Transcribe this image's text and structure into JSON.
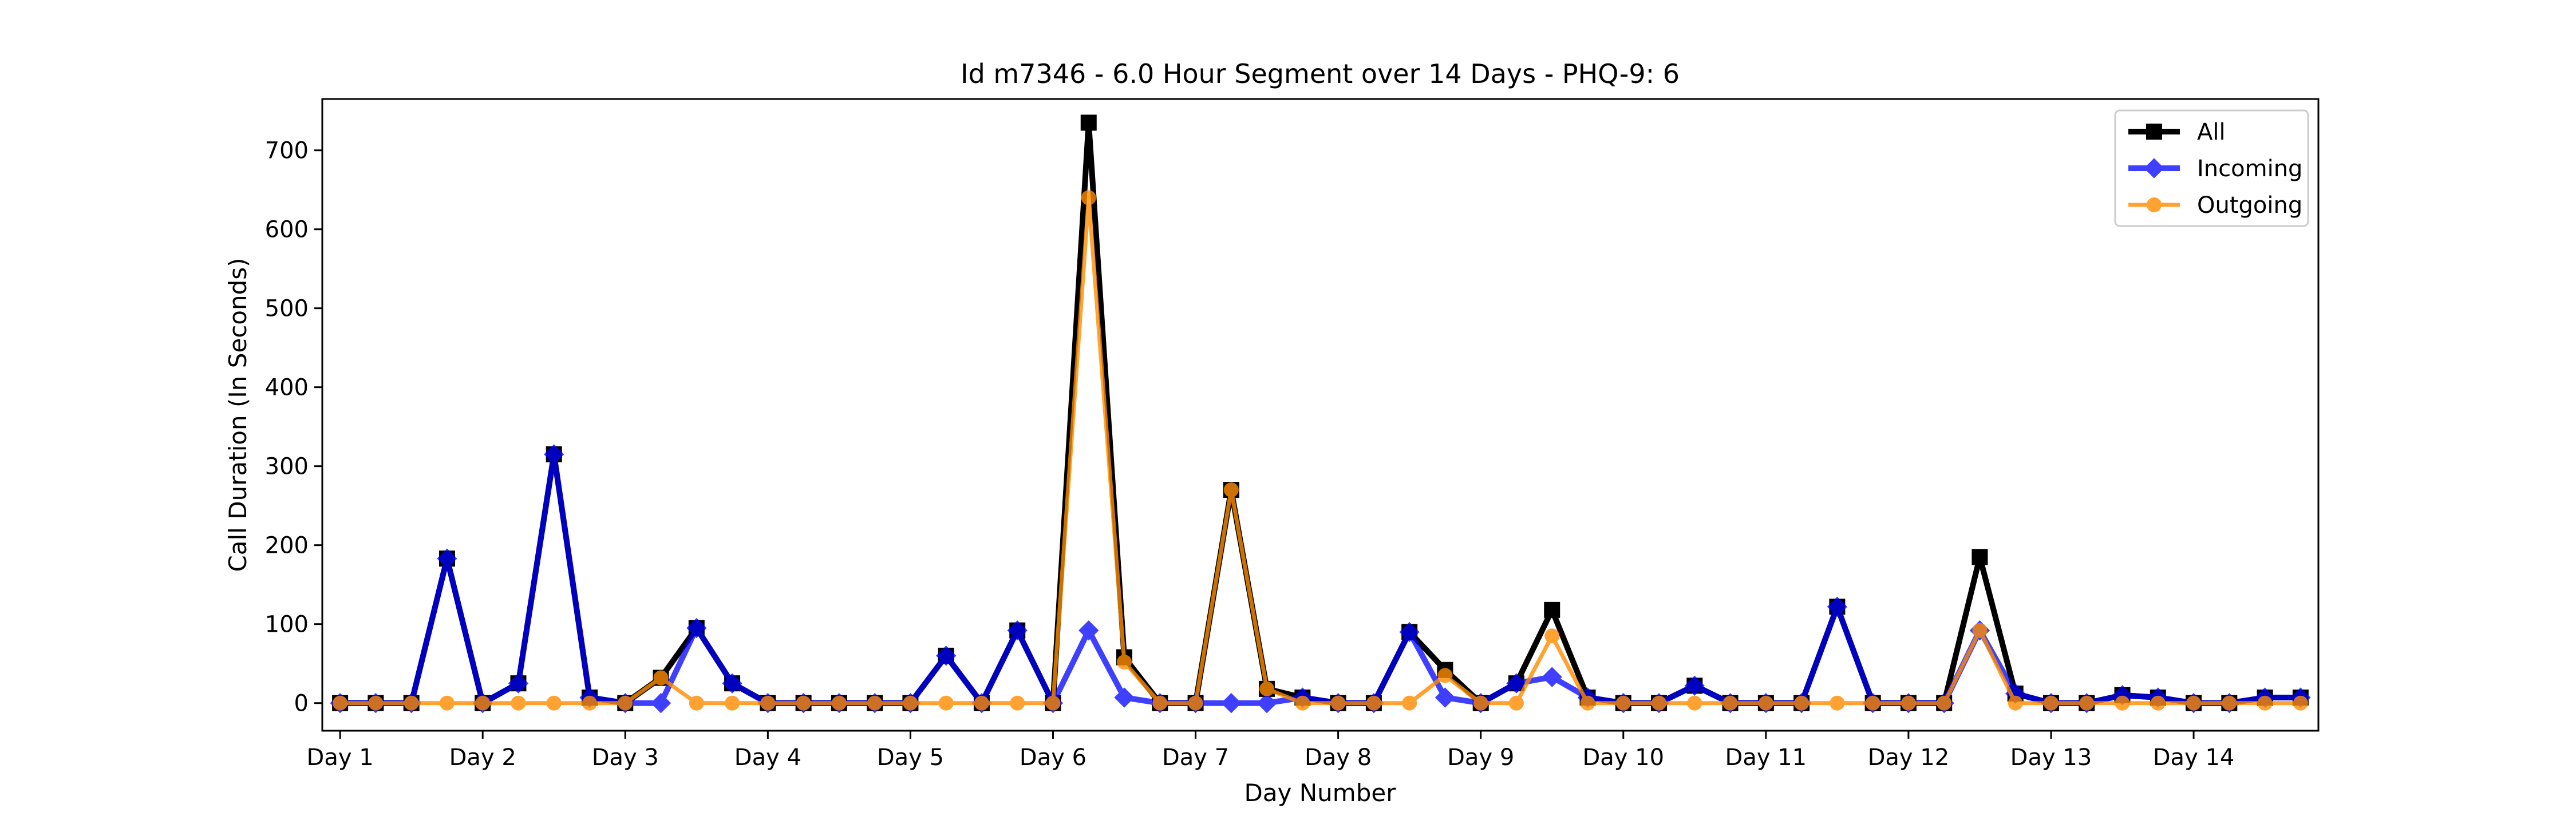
{
  "chart_data": {
    "type": "line",
    "title": "Id m7346 - 6.0 Hour Segment over 14 Days - PHQ-9: 6",
    "xlabel": "Day Number",
    "ylabel": "Call Duration (In Seconds)",
    "ylim": [
      -35,
      765
    ],
    "yticks": [
      0,
      100,
      200,
      300,
      400,
      500,
      600,
      700
    ],
    "xlim": [
      -0.5,
      55.5
    ],
    "xtick_labels": [
      "Day 1",
      "Day 2",
      "Day 3",
      "Day 4",
      "Day 5",
      "Day 6",
      "Day 7",
      "Day 8",
      "Day 9",
      "Day 10",
      "Day 11",
      "Day 12",
      "Day 13",
      "Day 14"
    ],
    "xtick_positions": [
      0,
      4,
      8,
      12,
      16,
      20,
      24,
      28,
      32,
      36,
      40,
      44,
      48,
      52
    ],
    "grid": false,
    "legend_position": "top-right",
    "x": [
      0,
      1,
      2,
      3,
      4,
      5,
      6,
      7,
      8,
      9,
      10,
      11,
      12,
      13,
      14,
      15,
      16,
      17,
      18,
      19,
      20,
      21,
      22,
      23,
      24,
      25,
      26,
      27,
      28,
      29,
      30,
      31,
      32,
      33,
      34,
      35,
      36,
      37,
      38,
      39,
      40,
      41,
      42,
      43,
      44,
      45,
      46,
      47,
      48,
      49,
      50,
      51,
      52,
      53,
      54,
      55
    ],
    "series": [
      {
        "name": "All",
        "color": "#000000",
        "marker": "square",
        "values": [
          0,
          0,
          0,
          183,
          0,
          25,
          315,
          7,
          0,
          32,
          95,
          25,
          0,
          0,
          0,
          0,
          0,
          60,
          0,
          92,
          0,
          735,
          58,
          0,
          0,
          270,
          18,
          7,
          0,
          0,
          90,
          42,
          0,
          25,
          118,
          7,
          0,
          0,
          22,
          0,
          0,
          0,
          122,
          0,
          0,
          0,
          185,
          12,
          0,
          0,
          10,
          7,
          0,
          0,
          7,
          7
        ]
      },
      {
        "name": "Incoming",
        "color": "#0000ff",
        "marker": "diamond",
        "values": [
          0,
          0,
          0,
          183,
          0,
          25,
          315,
          7,
          0,
          0,
          95,
          25,
          0,
          0,
          0,
          0,
          0,
          60,
          0,
          92,
          0,
          92,
          7,
          0,
          0,
          0,
          0,
          7,
          0,
          0,
          90,
          7,
          0,
          25,
          33,
          7,
          0,
          0,
          22,
          0,
          0,
          0,
          122,
          0,
          0,
          0,
          92,
          12,
          0,
          0,
          10,
          7,
          0,
          0,
          7,
          7
        ]
      },
      {
        "name": "Outgoing",
        "color": "#ff8c00",
        "marker": "circle",
        "values": [
          0,
          0,
          0,
          0,
          0,
          0,
          0,
          0,
          0,
          32,
          0,
          0,
          0,
          0,
          0,
          0,
          0,
          0,
          0,
          0,
          0,
          640,
          52,
          0,
          0,
          270,
          18,
          0,
          0,
          0,
          0,
          35,
          0,
          0,
          85,
          0,
          0,
          0,
          0,
          0,
          0,
          0,
          0,
          0,
          0,
          0,
          92,
          0,
          0,
          0,
          0,
          0,
          0,
          0,
          0,
          0
        ]
      }
    ]
  }
}
